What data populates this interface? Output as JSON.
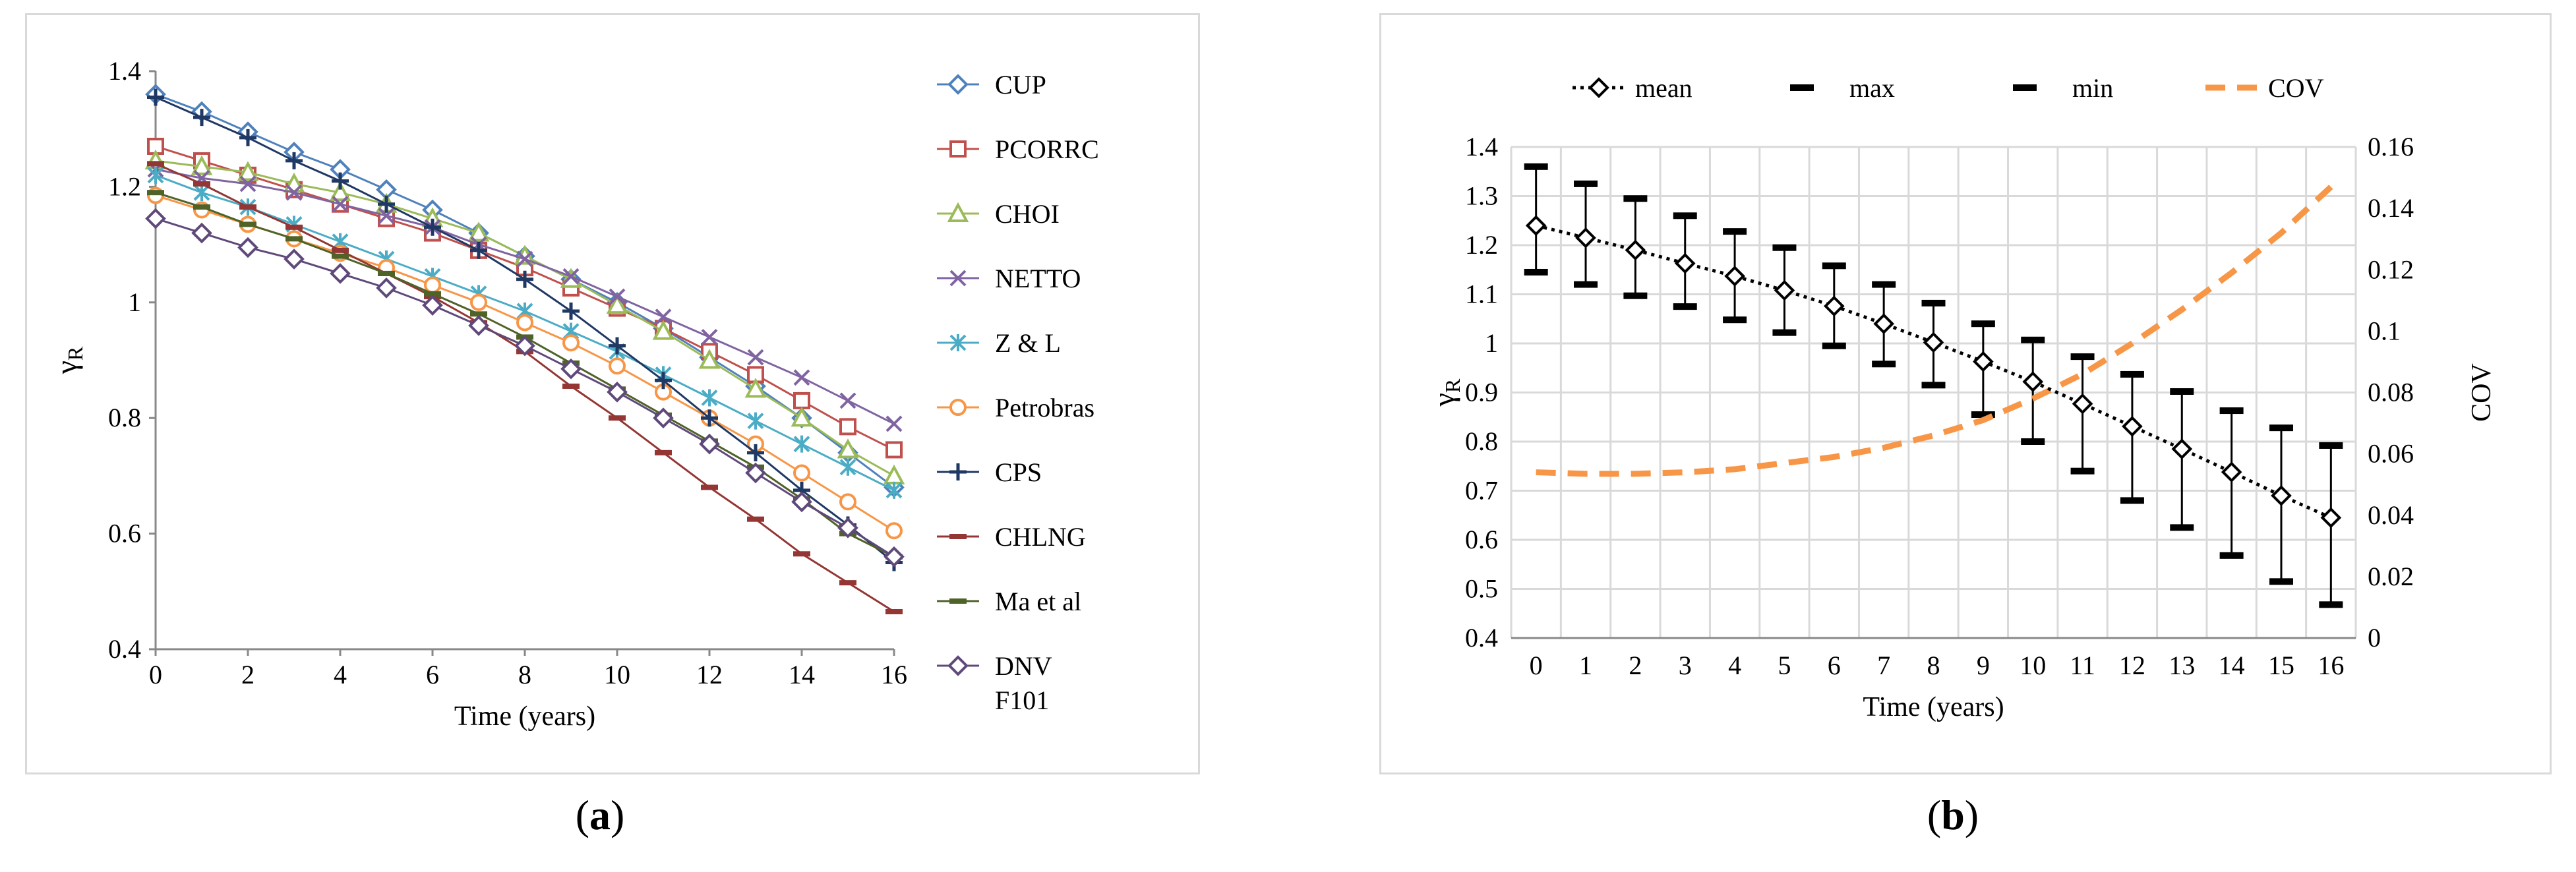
{
  "chart_data": [
    {
      "type": "line",
      "panel_label": "a",
      "xlabel": "Time (years)",
      "ylabel": "γR",
      "xlim": [
        0,
        16
      ],
      "ylim": [
        0.4,
        1.4
      ],
      "x_ticks": [
        "0",
        "2",
        "4",
        "6",
        "8",
        "10",
        "12",
        "14",
        "16"
      ],
      "y_ticks": [
        "0.4",
        "0.6",
        "0.8",
        "1",
        "1.2",
        "1.4"
      ],
      "x": [
        0,
        1,
        2,
        3,
        4,
        5,
        6,
        7,
        8,
        9,
        10,
        11,
        12,
        13,
        14,
        15,
        16
      ],
      "legend_position": "right",
      "series": [
        {
          "name": "CUP",
          "color": "#4f81bd",
          "marker": "diamond",
          "values": [
            1.36,
            1.33,
            1.295,
            1.26,
            1.23,
            1.195,
            1.16,
            1.12,
            1.08,
            1.04,
            1.0,
            0.955,
            0.905,
            0.855,
            0.8,
            0.74,
            0.68
          ]
        },
        {
          "name": "PCORRC",
          "color": "#c0504d",
          "marker": "square",
          "values": [
            1.27,
            1.245,
            1.22,
            1.195,
            1.17,
            1.145,
            1.12,
            1.09,
            1.06,
            1.025,
            0.99,
            0.955,
            0.915,
            0.875,
            0.83,
            0.785,
            0.745
          ]
        },
        {
          "name": "CHOI",
          "color": "#9bbb59",
          "marker": "triangle",
          "values": [
            1.245,
            1.235,
            1.225,
            1.205,
            1.19,
            1.17,
            1.145,
            1.12,
            1.08,
            1.04,
            0.995,
            0.95,
            0.9,
            0.85,
            0.8,
            0.745,
            0.7
          ]
        },
        {
          "name": "NETTO",
          "color": "#8064a2",
          "marker": "x",
          "values": [
            1.23,
            1.215,
            1.205,
            1.19,
            1.17,
            1.15,
            1.13,
            1.1,
            1.075,
            1.045,
            1.01,
            0.975,
            0.94,
            0.905,
            0.87,
            0.83,
            0.79
          ]
        },
        {
          "name": "Z & L",
          "color": "#4bacc6",
          "marker": "asterisk",
          "values": [
            1.22,
            1.19,
            1.165,
            1.135,
            1.105,
            1.075,
            1.045,
            1.015,
            0.985,
            0.95,
            0.915,
            0.875,
            0.835,
            0.795,
            0.755,
            0.715,
            0.675
          ]
        },
        {
          "name": "Petrobras",
          "color": "#f79646",
          "marker": "circle",
          "values": [
            1.185,
            1.16,
            1.135,
            1.11,
            1.085,
            1.06,
            1.03,
            1.0,
            0.965,
            0.93,
            0.89,
            0.845,
            0.8,
            0.755,
            0.705,
            0.655,
            0.605
          ]
        },
        {
          "name": "CPS",
          "color": "#1f3864",
          "marker": "plus",
          "values": [
            1.355,
            1.32,
            1.285,
            1.245,
            1.21,
            1.17,
            1.13,
            1.09,
            1.04,
            0.985,
            0.925,
            0.865,
            0.8,
            0.74,
            0.675,
            0.615,
            0.55
          ]
        },
        {
          "name": "CHLNG",
          "color": "#943634",
          "marker": "dash",
          "values": [
            1.24,
            1.205,
            1.165,
            1.13,
            1.09,
            1.05,
            1.01,
            0.965,
            0.915,
            0.855,
            0.8,
            0.74,
            0.68,
            0.625,
            0.565,
            0.515,
            0.465
          ]
        },
        {
          "name": "Ma et al",
          "color": "#4f6228",
          "marker": "dash",
          "values": [
            1.19,
            1.165,
            1.135,
            1.11,
            1.08,
            1.05,
            1.015,
            0.98,
            0.94,
            0.895,
            0.85,
            0.805,
            0.76,
            0.715,
            0.66,
            0.6,
            0.56
          ]
        },
        {
          "name": "DNV\nF101",
          "color": "#5f497a",
          "marker": "diamond",
          "values": [
            1.145,
            1.12,
            1.095,
            1.075,
            1.05,
            1.025,
            0.995,
            0.96,
            0.925,
            0.885,
            0.845,
            0.8,
            0.755,
            0.705,
            0.655,
            0.61,
            0.56
          ]
        }
      ]
    },
    {
      "type": "line",
      "panel_label": "b",
      "xlabel": "Time (years)",
      "ylabel": "γR",
      "y2label": "COV",
      "x": [
        0,
        1,
        2,
        3,
        4,
        5,
        6,
        7,
        8,
        9,
        10,
        11,
        12,
        13,
        14,
        15,
        16
      ],
      "x_ticks": [
        "0",
        "1",
        "2",
        "3",
        "4",
        "5",
        "6",
        "7",
        "8",
        "9",
        "10",
        "11",
        "12",
        "13",
        "14",
        "15",
        "16"
      ],
      "ylim": [
        0.4,
        1.4
      ],
      "y_ticks": [
        "0.4",
        "0.5",
        "0.6",
        "0.7",
        "0.8",
        "0.9",
        "1",
        "1.1",
        "1.2",
        "1.3",
        "1.4"
      ],
      "y2lim": [
        0,
        0.16
      ],
      "y2_ticks": [
        "0",
        "0.02",
        "0.04",
        "0.06",
        "0.08",
        "0.1",
        "0.12",
        "0.14",
        "0.16"
      ],
      "legend_position": "top",
      "grid": true,
      "legend": [
        "mean",
        "max",
        "min",
        "COV"
      ],
      "mean": [
        1.24,
        1.215,
        1.19,
        1.163,
        1.137,
        1.108,
        1.076,
        1.04,
        1.002,
        0.963,
        0.922,
        0.877,
        0.831,
        0.785,
        0.738,
        0.69,
        0.645
      ],
      "max": [
        1.36,
        1.325,
        1.295,
        1.26,
        1.228,
        1.195,
        1.158,
        1.12,
        1.082,
        1.04,
        1.007,
        0.973,
        0.937,
        0.902,
        0.863,
        0.828,
        0.792
      ],
      "min": [
        1.145,
        1.12,
        1.097,
        1.075,
        1.048,
        1.022,
        0.995,
        0.958,
        0.915,
        0.855,
        0.8,
        0.74,
        0.68,
        0.625,
        0.568,
        0.515,
        0.468
      ],
      "cov": [
        0.054,
        0.0535,
        0.0535,
        0.054,
        0.055,
        0.057,
        0.059,
        0.062,
        0.066,
        0.071,
        0.078,
        0.086,
        0.096,
        0.107,
        0.119,
        0.132,
        0.147
      ],
      "colors": {
        "mean": "#000000",
        "range": "#000000",
        "cov": "#f79646"
      }
    }
  ],
  "captions": {
    "a": "(a)",
    "b": "(b)"
  }
}
